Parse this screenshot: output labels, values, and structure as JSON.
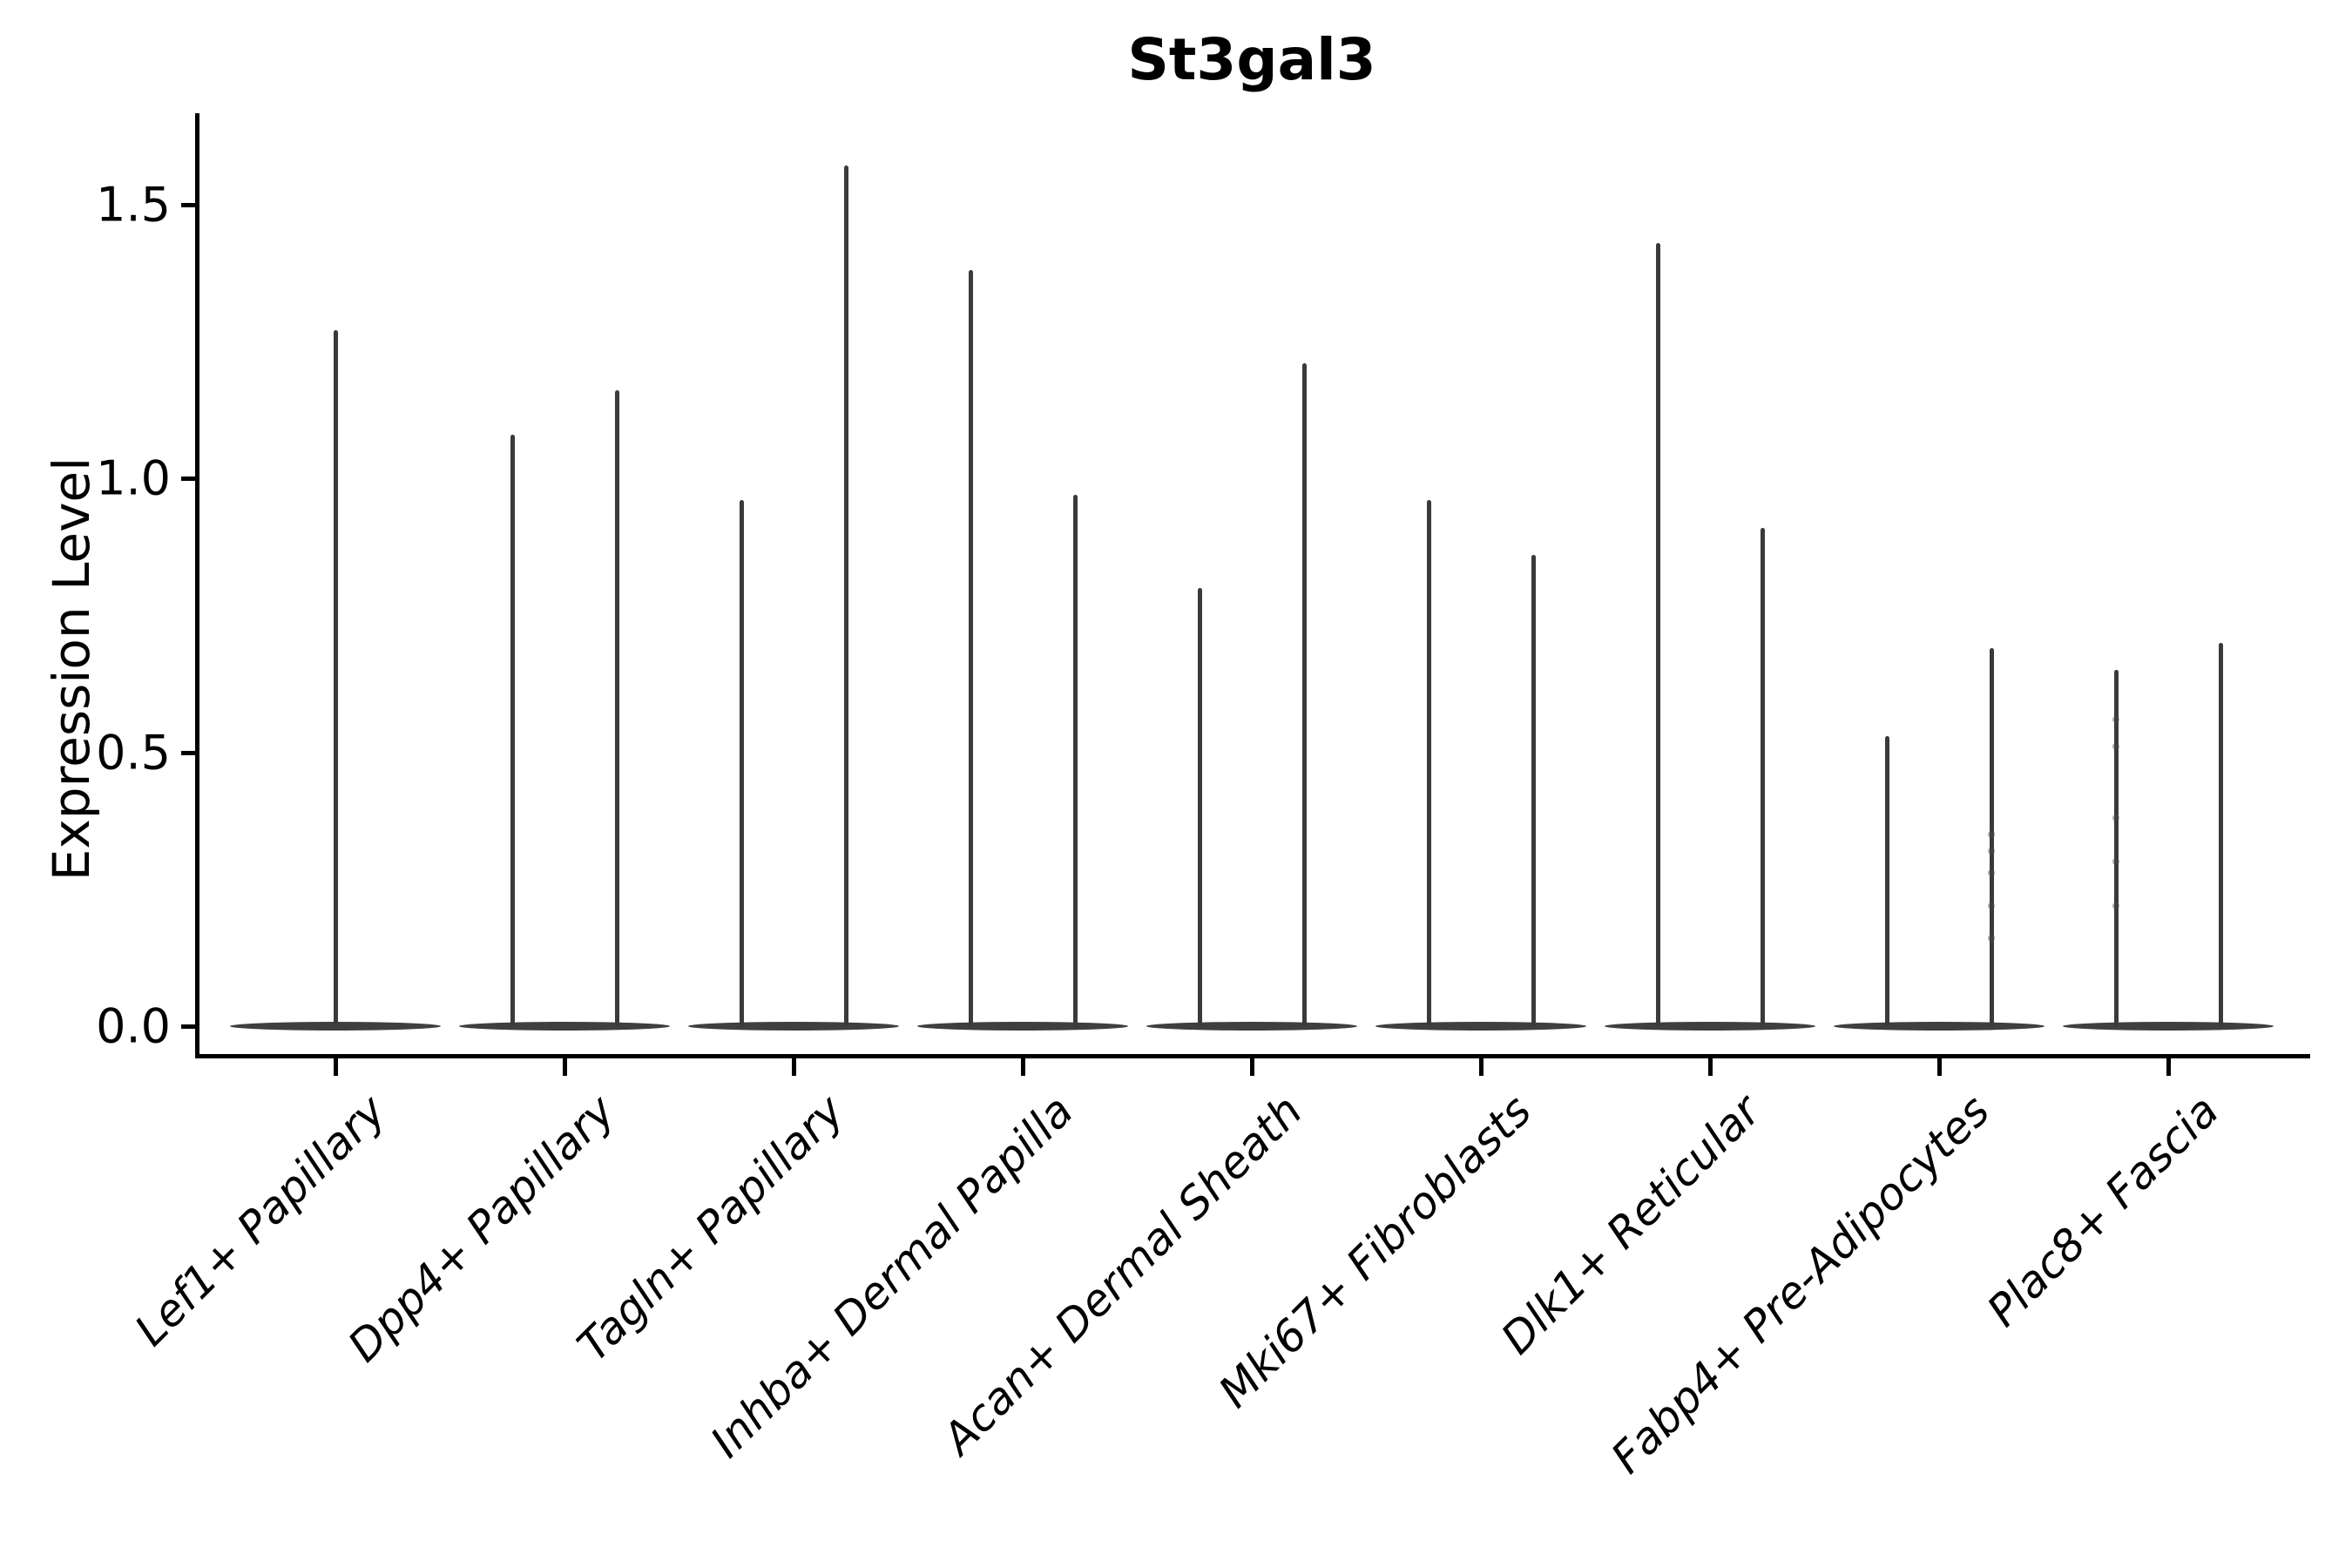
{
  "title": "St3gal3",
  "ylabel": "Expression Level",
  "chart_data": {
    "type": "violin",
    "title": "St3gal3",
    "xlabel": "",
    "ylabel": "Expression Level",
    "ylim": [
      -0.07,
      1.67
    ],
    "yticks": [
      0.0,
      0.5,
      1.0,
      1.5
    ],
    "ytick_labels": [
      "0.0",
      "0.5",
      "1.0",
      "1.5"
    ],
    "grid": false,
    "legend": "none",
    "x_tick_style": "rotated-45-italic",
    "categories": [
      "Lef1+ Papillary",
      "Dpp4+ Papillary",
      "Tagln+ Papillary",
      "Inhba+ Dermal Papilla",
      "Acan+ Dermal Sheath",
      "Mki67+ Fibroblasts",
      "Dlk1+ Reticular",
      "Fabp4+ Pre-Adipocytes",
      "Plac8+ Fascia"
    ],
    "description": "Collapsed violins: density mass at 0 expression forms a flat lens at the baseline; thin spikes rise to the maximum expression value. Most categories show two spikes (two violins side by side); the first category shows a single central spike.",
    "baseline_value": 0.0,
    "violins": [
      {
        "category": "Lef1+ Papillary",
        "spikes": [
          {
            "pos": "center",
            "max": 1.27
          }
        ]
      },
      {
        "category": "Dpp4+ Papillary",
        "spikes": [
          {
            "pos": "left",
            "max": 1.08
          },
          {
            "pos": "right",
            "max": 1.16
          }
        ]
      },
      {
        "category": "Tagln+ Papillary",
        "spikes": [
          {
            "pos": "left",
            "max": 0.96
          },
          {
            "pos": "right",
            "max": 1.57
          }
        ]
      },
      {
        "category": "Inhba+ Dermal Papilla",
        "spikes": [
          {
            "pos": "left",
            "max": 1.38
          },
          {
            "pos": "right",
            "max": 0.97
          }
        ]
      },
      {
        "category": "Acan+ Dermal Sheath",
        "spikes": [
          {
            "pos": "left",
            "max": 0.8
          },
          {
            "pos": "right",
            "max": 1.21
          }
        ]
      },
      {
        "category": "Mki67+ Fibroblasts",
        "spikes": [
          {
            "pos": "left",
            "max": 0.96
          },
          {
            "pos": "right",
            "max": 0.86
          }
        ]
      },
      {
        "category": "Dlk1+ Reticular",
        "spikes": [
          {
            "pos": "left",
            "max": 1.43
          },
          {
            "pos": "right",
            "max": 0.91
          }
        ]
      },
      {
        "category": "Fabp4+ Pre-Adipocytes",
        "spikes": [
          {
            "pos": "left",
            "max": 0.53
          },
          {
            "pos": "right",
            "max": 0.69,
            "dots": [
              0.35,
              0.32,
              0.28,
              0.22,
              0.16
            ]
          }
        ]
      },
      {
        "category": "Plac8+ Fascia",
        "spikes": [
          {
            "pos": "left",
            "max": 0.65,
            "dots": [
              0.56,
              0.51,
              0.38,
              0.3,
              0.22
            ]
          },
          {
            "pos": "right",
            "max": 0.7
          }
        ]
      }
    ],
    "colors": {
      "spike_line": "#3a3a3a",
      "violin_body": "#3f3f3f",
      "axis": "#000000",
      "text": "#000000",
      "dots": "#4a4a4a",
      "background": "#ffffff"
    }
  }
}
